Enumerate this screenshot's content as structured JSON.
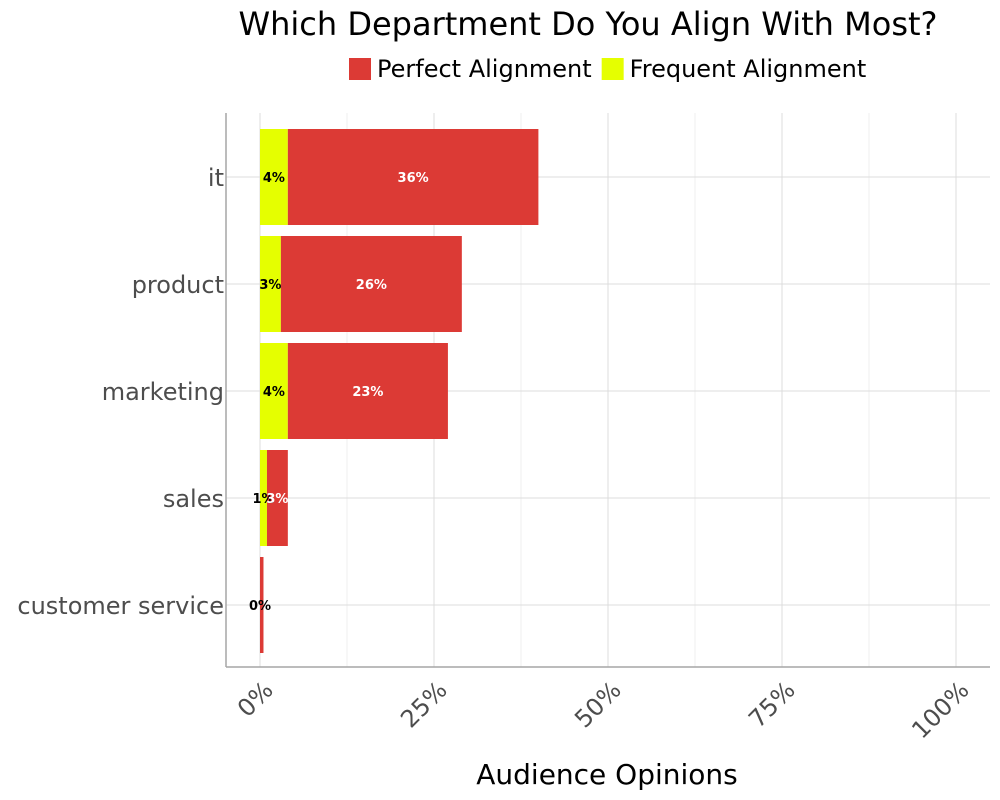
{
  "chart_data": {
    "type": "bar",
    "orientation": "horizontal",
    "stacked": true,
    "title": "Which Department Do You Align With Most?",
    "xlabel": "Audience Opinions",
    "ylabel": "",
    "xlim": [
      0,
      100
    ],
    "x_ticks": [
      0,
      25,
      50,
      75,
      100
    ],
    "x_tick_labels": [
      "0%",
      "25%",
      "50%",
      "75%",
      "100%"
    ],
    "categories": [
      "it",
      "product",
      "marketing",
      "sales",
      "customer service"
    ],
    "series": [
      {
        "name": "Frequent Alignment",
        "color": "#e5ff00",
        "label_color": "#000000",
        "values": [
          4,
          3,
          4,
          1,
          0
        ],
        "labels": [
          "4%",
          "3%",
          "4%",
          "1%",
          "0%"
        ]
      },
      {
        "name": "Perfect Alignment",
        "color": "#dc3a35",
        "label_color": "#ffffff",
        "values": [
          36,
          26,
          23,
          3,
          0.5
        ],
        "labels": [
          "36%",
          "26%",
          "23%",
          "3%",
          ""
        ]
      }
    ],
    "legend": {
      "position": "top",
      "order": [
        "Perfect Alignment",
        "Frequent Alignment"
      ]
    },
    "grid": true
  }
}
